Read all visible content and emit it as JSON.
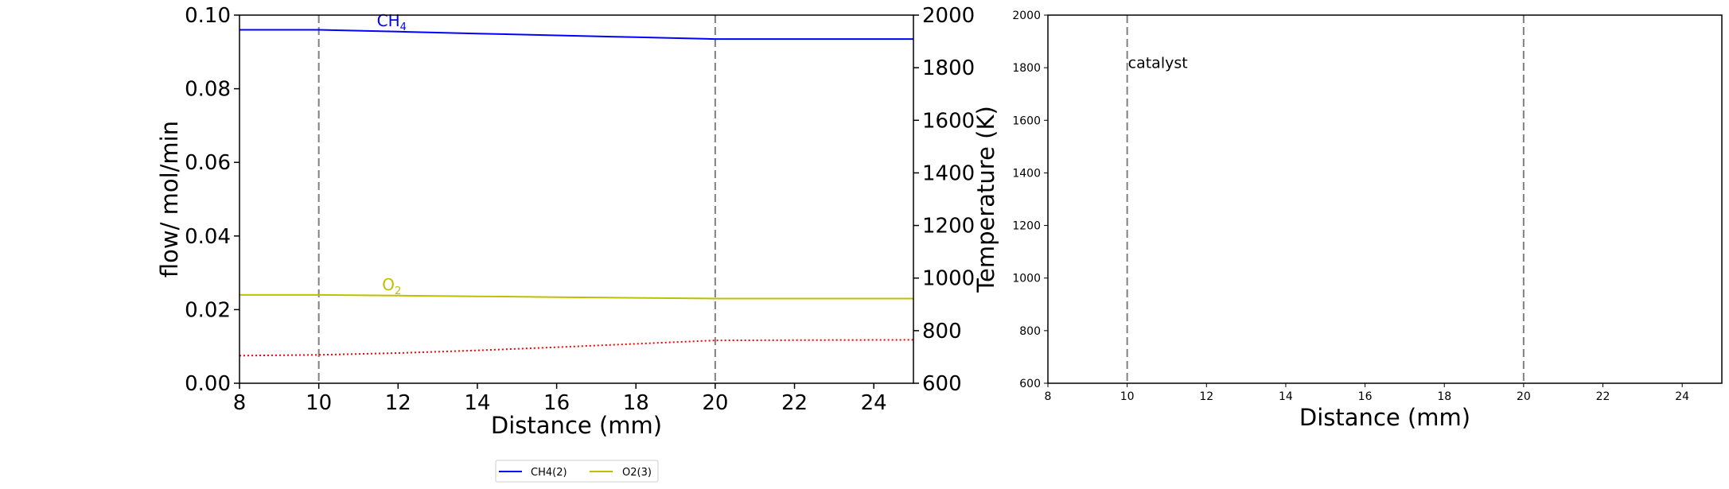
{
  "chart_data": [
    {
      "type": "line",
      "xlabel": "Distance (mm)",
      "ylabel": "flow/ mol/min",
      "ylabel_right": "Temperature (K)",
      "xlim": [
        8,
        25
      ],
      "ylim": [
        0,
        0.1
      ],
      "ylim_right": [
        600,
        2000
      ],
      "xticks": [
        "8",
        "10",
        "12",
        "14",
        "16",
        "18",
        "20",
        "22",
        "24"
      ],
      "yticks": [
        "0.00",
        "0.02",
        "0.04",
        "0.06",
        "0.08",
        "0.10"
      ],
      "yticks_right": [
        "600",
        "800",
        "1000",
        "1200",
        "1400",
        "1600",
        "1800",
        "2000"
      ],
      "vlines": [
        10,
        20
      ],
      "grid": false,
      "series": [
        {
          "name": "CH4(2)",
          "annotation": "CH",
          "annotation_sub": "4",
          "color": "#0000ff",
          "axis": "left",
          "style": "solid",
          "x": [
            8,
            10,
            12,
            14,
            16,
            18,
            20,
            22,
            25
          ],
          "y": [
            0.096,
            0.096,
            0.0955,
            0.095,
            0.0945,
            0.094,
            0.0935,
            0.0935,
            0.0935
          ]
        },
        {
          "name": "O2(3)",
          "annotation": "O",
          "annotation_sub": "2",
          "color": "#bfbf00",
          "axis": "left",
          "style": "solid",
          "x": [
            8,
            10,
            12,
            14,
            16,
            18,
            20,
            22,
            25
          ],
          "y": [
            0.024,
            0.024,
            0.0238,
            0.0236,
            0.0234,
            0.0232,
            0.023,
            0.023,
            0.023
          ]
        },
        {
          "color": "#ff0000",
          "axis": "right",
          "style": "dotted",
          "x": [
            8,
            10,
            12,
            14,
            16,
            18,
            20,
            22,
            25
          ],
          "y": [
            705,
            708,
            715,
            725,
            737,
            750,
            763,
            764,
            765
          ]
        }
      ],
      "legend": {
        "placement": "bottom-center",
        "entries": [
          {
            "label": "CH4(2)",
            "color": "#0000ff"
          },
          {
            "label": "O2(3)",
            "color": "#bfbf00"
          }
        ]
      }
    },
    {
      "type": "line",
      "xlabel": "Distance (mm)",
      "xlim": [
        8,
        25
      ],
      "ylim": [
        600,
        2000
      ],
      "xticks": [
        "8",
        "10",
        "12",
        "14",
        "16",
        "18",
        "20",
        "22",
        "24"
      ],
      "yticks": [
        "600",
        "800",
        "1000",
        "1200",
        "1400",
        "1600",
        "1800",
        "2000"
      ],
      "vlines": [
        10,
        20
      ],
      "annotation": {
        "text": "catalyst",
        "x": 10,
        "y": 1820
      },
      "grid": false,
      "series": []
    }
  ]
}
